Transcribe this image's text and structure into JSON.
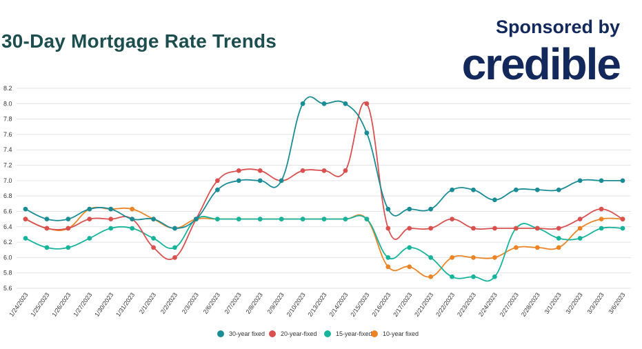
{
  "header": {
    "title": "30-Day Mortgage Rate Trends",
    "sponsor_text": "Sponsored by",
    "brand": "credible"
  },
  "colors": {
    "title": "#1d4e4f",
    "brand": "#13285b",
    "grid": "#e3e3e3"
  },
  "chart_data": {
    "type": "line",
    "title": "30-Day Mortgage Rate Trends",
    "xlabel": "",
    "ylabel": "",
    "ylim": [
      5.6,
      8.2
    ],
    "yticks": [
      "8.2",
      "8.0",
      "7.8",
      "7.6",
      "7.4",
      "7.2",
      "7.0",
      "6.8",
      "6.6",
      "6.4",
      "6.2",
      "6.0",
      "5.8",
      "5.6"
    ],
    "grid": true,
    "legend": "bottom-center",
    "categories": [
      "1/24/2023",
      "1/25/2023",
      "1/26/2023",
      "1/27/2023",
      "1/30/2023",
      "1/31/2023",
      "2/1/2023",
      "2/2/2023",
      "2/3/2023",
      "2/6/2023",
      "2/7/2023",
      "2/8/2023",
      "2/9/2023",
      "2/10/2023",
      "2/13/2023",
      "2/14/2023",
      "2/15/2023",
      "2/16/2023",
      "2/17/2023",
      "2/21/2023",
      "2/22/2023",
      "2/23/2023",
      "2/24/2023",
      "2/27/2023",
      "2/28/2023",
      "3/1/2023",
      "3/2/2023",
      "3/3/2023",
      "3/6/2023"
    ],
    "series": [
      {
        "name": "30-year fixed",
        "color": "#1a8c95",
        "values": [
          6.63,
          6.5,
          6.5,
          6.63,
          6.63,
          6.5,
          6.5,
          6.38,
          6.5,
          6.88,
          7.0,
          7.0,
          7.0,
          8.0,
          8.0,
          8.0,
          7.62,
          6.63,
          6.63,
          6.63,
          6.88,
          6.88,
          6.75,
          6.88,
          6.88,
          6.88,
          7.0,
          7.0,
          7.0
        ]
      },
      {
        "name": "20-year-fixed",
        "color": "#d9504f",
        "values": [
          6.5,
          6.38,
          6.38,
          6.5,
          6.5,
          6.5,
          6.13,
          6.0,
          6.5,
          7.0,
          7.13,
          7.13,
          7.0,
          7.13,
          7.13,
          7.13,
          8.0,
          6.38,
          6.38,
          6.38,
          6.5,
          6.38,
          6.38,
          6.38,
          6.38,
          6.38,
          6.5,
          6.63,
          6.5
        ]
      },
      {
        "name": "15-year-fixed",
        "color": "#16b49b",
        "values": [
          6.25,
          6.13,
          6.13,
          6.25,
          6.38,
          6.38,
          6.25,
          6.13,
          6.5,
          6.5,
          6.5,
          6.5,
          6.5,
          6.5,
          6.5,
          6.5,
          6.5,
          6.0,
          6.13,
          6.0,
          5.75,
          5.75,
          5.75,
          6.38,
          6.38,
          6.25,
          6.25,
          6.38,
          6.38
        ]
      },
      {
        "name": "10-year fixed",
        "color": "#ec8425",
        "values": [
          6.5,
          6.38,
          6.38,
          6.63,
          6.63,
          6.63,
          6.5,
          6.38,
          6.5,
          6.5,
          6.5,
          6.5,
          6.5,
          6.5,
          6.5,
          6.5,
          6.5,
          5.88,
          5.88,
          5.75,
          6.0,
          6.0,
          6.0,
          6.13,
          6.13,
          6.13,
          6.38,
          6.5,
          6.5
        ]
      }
    ]
  }
}
